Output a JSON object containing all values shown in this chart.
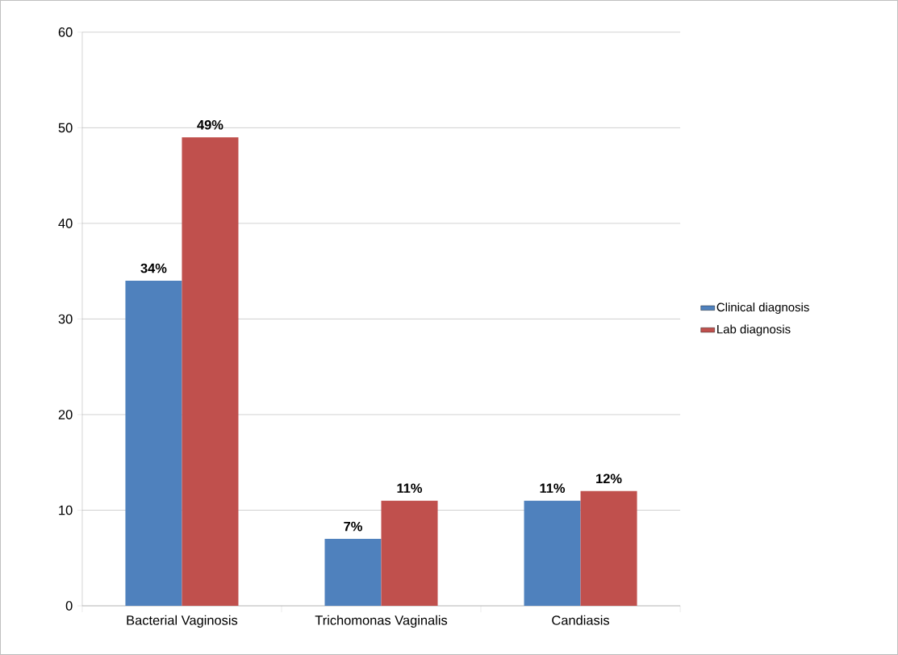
{
  "chart_data": {
    "type": "bar",
    "categories": [
      "Bacterial Vaginosis",
      "Trichomonas Vaginalis",
      "Candiasis"
    ],
    "series": [
      {
        "name": "Clinical diagnosis",
        "color": "#4f81bd",
        "values": [
          34,
          7,
          11
        ],
        "value_labels": [
          "34%",
          "7%",
          "11%"
        ]
      },
      {
        "name": "Lab diagnosis",
        "color": "#c0504d",
        "values": [
          49,
          11,
          12
        ],
        "value_labels": [
          "49%",
          "11%",
          "12%"
        ]
      }
    ],
    "ylim": [
      0,
      60
    ],
    "yticks": [
      0,
      10,
      20,
      30,
      40,
      50,
      60
    ],
    "grid": "y",
    "legend": "right"
  }
}
